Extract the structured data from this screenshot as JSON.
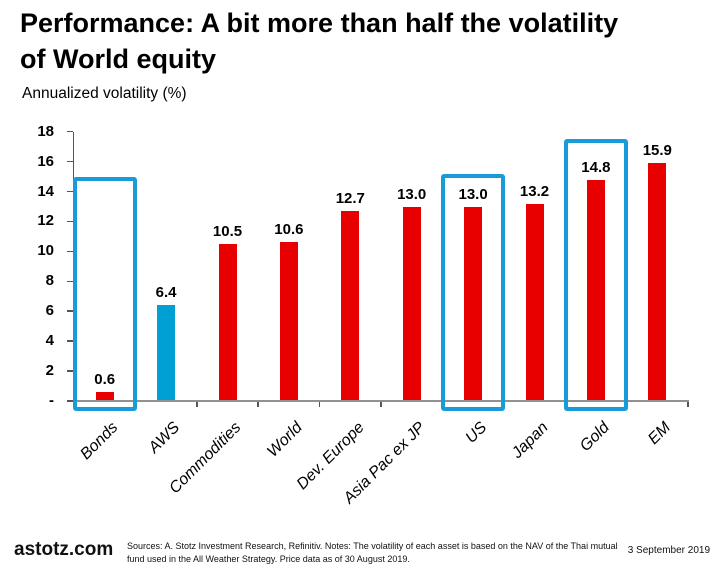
{
  "title": {
    "lines": [
      "Performance: A bit more than half the volatility",
      "of World equity"
    ]
  },
  "chart_data": {
    "type": "bar",
    "title": "Performance: A bit more than half the volatility of World equity",
    "ylabel": "Annualized volatility (%)",
    "xlabel": "",
    "categories": [
      "Bonds",
      "AWS",
      "Commodities",
      "World",
      "Dev. Europe",
      "Asia Pac ex JP",
      "US",
      "Japan",
      "Gold",
      "EM"
    ],
    "values": [
      0.6,
      6.4,
      10.5,
      10.6,
      12.7,
      13.0,
      13.0,
      13.2,
      14.8,
      15.9
    ],
    "value_decimals": 1,
    "ylim": [
      0,
      18
    ],
    "y_tick_step": 2,
    "y_zero_label": "-",
    "grid": false,
    "legend": "none",
    "bar_color": "#e80000",
    "accent_category": "AWS",
    "accent_color": "#00a0d4",
    "highlight_box_color": "#189cd8",
    "highlight_boxes": [
      {
        "category": "Bonds",
        "top_value": 15.0
      },
      {
        "category": "US",
        "top_value": 15.2
      },
      {
        "category": "Gold",
        "top_value": 17.5
      }
    ]
  },
  "footer": {
    "brand": "astotz.com",
    "notes": "Sources: A. Stotz Investment Research, Refinitiv. Notes: The volatility of each asset is based on the NAV of the Thai mutual fund used in the All Weather Strategy. Price data as of 30 August 2019.",
    "date": "3 September 2019"
  }
}
